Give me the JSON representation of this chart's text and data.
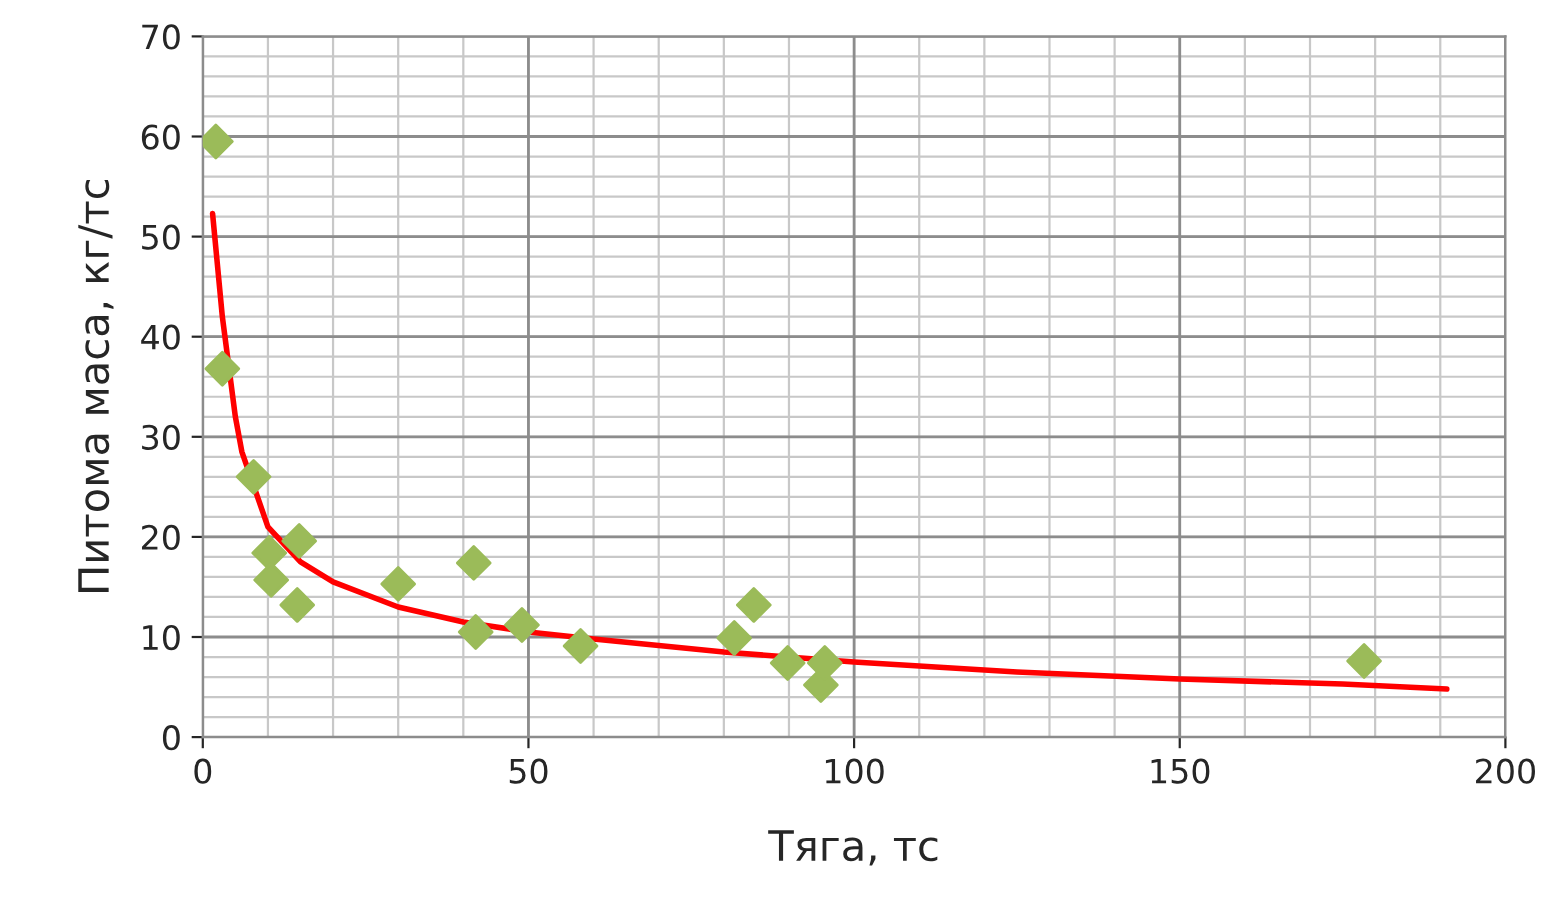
{
  "chart_data": {
    "type": "scatter",
    "xlabel": "Тяга, тс",
    "ylabel": "Питома маса, кг/тс",
    "xlim": [
      0,
      200
    ],
    "ylim": [
      0,
      70
    ],
    "xticks": [
      0,
      50,
      100,
      150,
      200
    ],
    "yticks": [
      0,
      10,
      20,
      30,
      40,
      50,
      60,
      70
    ],
    "grid": true,
    "legend": false,
    "series": [
      {
        "marker": "diamond",
        "color": "#9bbb59",
        "x": [
          2,
          3,
          7.8,
          10.2,
          10.5,
          14.8,
          14.5,
          30,
          41.6,
          41.9,
          49,
          58,
          81.6,
          84.6,
          89.8,
          94.9,
          95.5,
          178.3
        ],
        "values": [
          59.5,
          36.8,
          26,
          18.4,
          15.7,
          19.6,
          13.2,
          15.3,
          17.4,
          10.5,
          11.2,
          9.1,
          9.9,
          13.2,
          7.4,
          5.2,
          7.4,
          7.6
        ]
      },
      {
        "type": "line",
        "marker": "none",
        "color": "#ff0000",
        "line_style": "solid",
        "x": [
          1.5,
          3,
          5,
          6,
          10,
          15,
          20,
          30,
          40,
          50,
          60,
          80,
          100,
          125,
          150,
          175,
          191
        ],
        "values": [
          52.3,
          42,
          32,
          28.5,
          21,
          17.5,
          15.5,
          13,
          11.5,
          10.5,
          9.8,
          8.5,
          7.5,
          6.5,
          5.8,
          5.3,
          4.8
        ]
      }
    ]
  }
}
